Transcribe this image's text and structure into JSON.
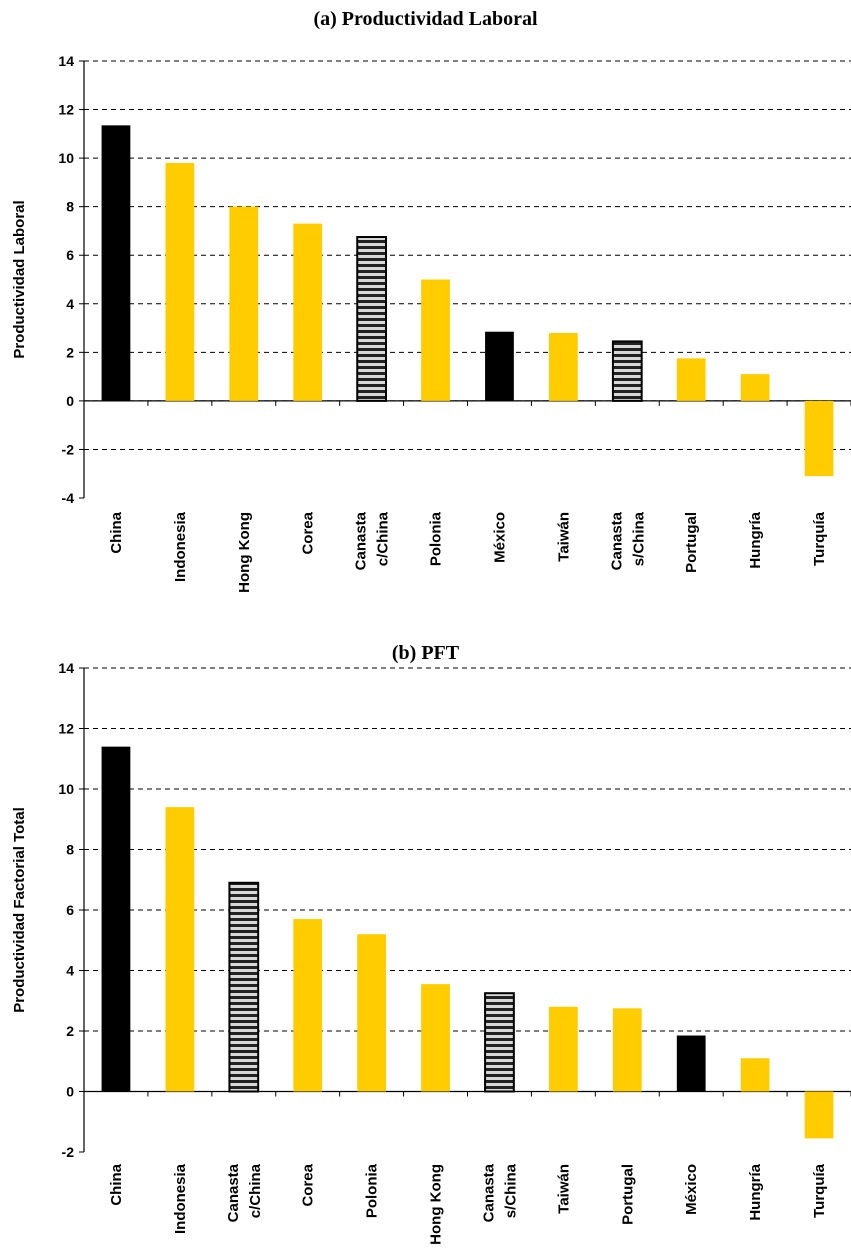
{
  "colors": {
    "highlight": "#000000",
    "default": "#FFCC00",
    "basket_stripe_dark": "#222222",
    "basket_stripe_light": "#d8d8d8",
    "grid": "#000000"
  },
  "chart_data": [
    {
      "type": "bar",
      "title": "(a) Productividad Laboral",
      "ylabel": "Productividad Laboral",
      "xlabel": "",
      "ylim": [
        -4,
        14
      ],
      "yticks": [
        -4,
        -2,
        0,
        2,
        4,
        6,
        8,
        10,
        12,
        14
      ],
      "grid": "horizontal dashed",
      "categories": [
        [
          "China"
        ],
        [
          "Indonesia"
        ],
        [
          "Hong Kong"
        ],
        [
          "Corea"
        ],
        [
          "Canasta",
          "c/China"
        ],
        [
          "Polonia"
        ],
        [
          "México"
        ],
        [
          "Taiwán"
        ],
        [
          "Canasta",
          "s/China"
        ],
        [
          "Portugal"
        ],
        [
          "Hungría"
        ],
        [
          "Turquía"
        ]
      ],
      "values": [
        11.35,
        9.8,
        8.0,
        7.3,
        6.75,
        5.0,
        2.85,
        2.8,
        2.45,
        1.75,
        1.1,
        -3.1
      ],
      "styles": [
        "black",
        "yellow",
        "yellow",
        "yellow",
        "striped",
        "yellow",
        "black",
        "yellow",
        "striped",
        "yellow",
        "yellow",
        "yellow"
      ]
    },
    {
      "type": "bar",
      "title": "(b) PFT",
      "ylabel": "Productividad Factorial Total",
      "xlabel": "",
      "ylim": [
        -2,
        14
      ],
      "yticks": [
        -2,
        0,
        2,
        4,
        6,
        8,
        10,
        12,
        14
      ],
      "grid": "horizontal dashed",
      "categories": [
        [
          "China"
        ],
        [
          "Indonesia"
        ],
        [
          "Canasta",
          "c/China"
        ],
        [
          "Corea"
        ],
        [
          "Polonia"
        ],
        [
          "Hong Kong"
        ],
        [
          "Canasta",
          "s/China"
        ],
        [
          "Taiwán"
        ],
        [
          "Portugal"
        ],
        [
          "México"
        ],
        [
          "Hungría"
        ],
        [
          "Turquía"
        ]
      ],
      "values": [
        11.4,
        9.4,
        6.9,
        5.7,
        5.2,
        3.55,
        3.25,
        2.8,
        2.75,
        1.85,
        1.1,
        -1.55
      ],
      "styles": [
        "black",
        "yellow",
        "striped",
        "yellow",
        "yellow",
        "yellow",
        "striped",
        "yellow",
        "yellow",
        "black",
        "yellow",
        "yellow"
      ]
    }
  ]
}
